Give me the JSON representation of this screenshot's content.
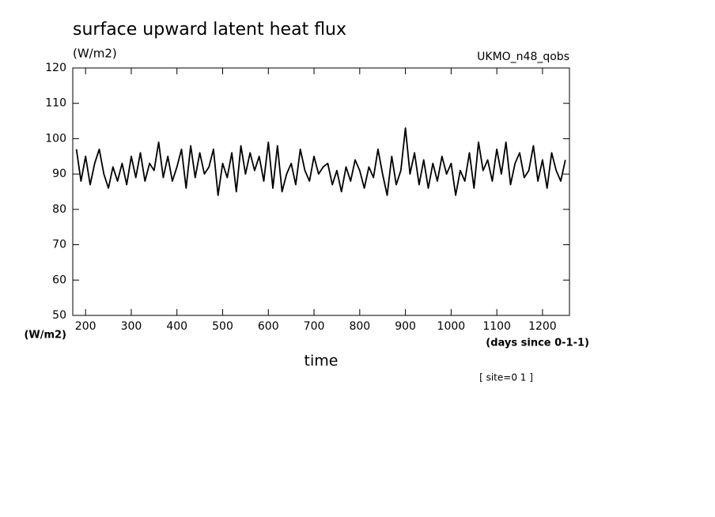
{
  "chart_data": {
    "type": "line",
    "title": "surface upward latent heat flux",
    "units_top": "(W/m2)",
    "units_left": "(W/m2)",
    "dataset": "UKMO_n48_qobs",
    "x_label": "time",
    "x_units": "(days since 0-1-1)",
    "subset": "[ site=0 1 ]",
    "x": [
      180,
      190,
      200,
      210,
      220,
      230,
      240,
      250,
      260,
      270,
      280,
      290,
      300,
      310,
      320,
      330,
      340,
      350,
      360,
      370,
      380,
      390,
      400,
      410,
      420,
      430,
      440,
      450,
      460,
      470,
      480,
      490,
      500,
      510,
      520,
      530,
      540,
      550,
      560,
      570,
      580,
      590,
      600,
      610,
      620,
      630,
      640,
      650,
      660,
      670,
      680,
      690,
      700,
      710,
      720,
      730,
      740,
      750,
      760,
      770,
      780,
      790,
      800,
      810,
      820,
      830,
      840,
      850,
      860,
      870,
      880,
      890,
      900,
      910,
      920,
      930,
      940,
      950,
      960,
      970,
      980,
      990,
      1000,
      1010,
      1020,
      1030,
      1040,
      1050,
      1060,
      1070,
      1080,
      1090,
      1100,
      1110,
      1120,
      1130,
      1140,
      1150,
      1160,
      1170,
      1180,
      1190,
      1200,
      1210,
      1220,
      1230,
      1240,
      1250
    ],
    "series": [
      {
        "color": "#000000",
        "values": [
          97,
          88,
          95,
          87,
          93,
          97,
          90,
          86,
          92,
          88,
          93,
          87,
          95,
          89,
          96,
          88,
          93,
          91,
          99,
          89,
          95,
          88,
          92,
          97,
          86,
          98,
          89,
          96,
          90,
          92,
          97,
          84,
          93,
          89,
          96,
          85,
          98,
          90,
          96,
          91,
          95,
          88,
          99,
          86,
          98,
          85,
          90,
          93,
          87,
          97,
          91,
          88,
          95,
          90,
          92,
          93,
          87,
          91,
          85,
          92,
          88,
          94,
          91,
          86,
          92,
          89,
          97,
          90,
          84,
          95,
          87,
          91,
          103,
          90,
          96,
          87,
          94,
          86,
          93,
          88,
          95,
          90,
          93,
          84,
          91,
          88,
          96,
          86,
          99,
          91,
          94,
          88,
          97,
          90,
          99,
          87,
          93,
          96,
          89,
          91,
          98,
          88,
          94,
          86,
          96,
          91,
          88,
          94
        ]
      }
    ],
    "xlim": [
      172,
      1259
    ],
    "ylim": [
      50,
      120
    ],
    "xticks": [
      200,
      300,
      400,
      500,
      600,
      700,
      800,
      900,
      1000,
      1100,
      1200
    ],
    "yticks": [
      50,
      60,
      70,
      80,
      90,
      100,
      110,
      120
    ]
  }
}
